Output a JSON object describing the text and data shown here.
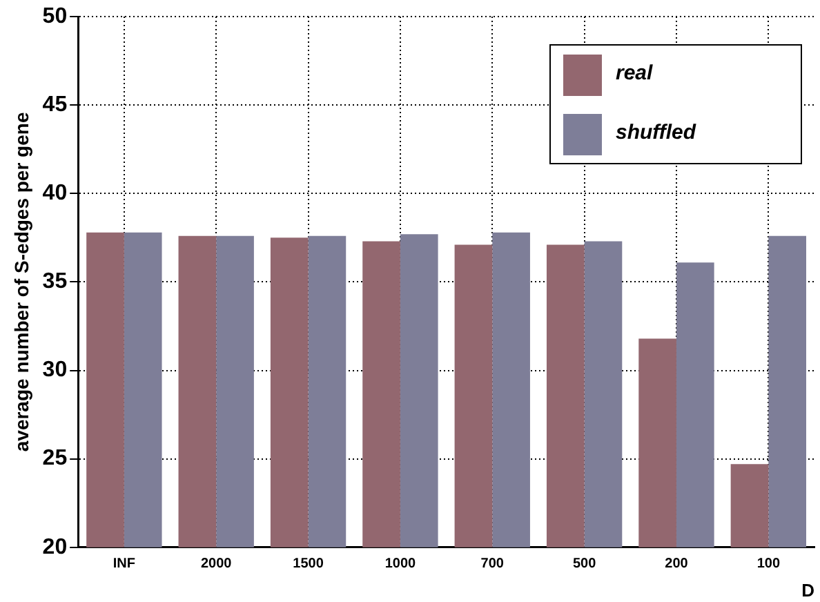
{
  "chart_data": {
    "type": "bar",
    "xlabel": "D",
    "ylabel": "average number of S-edges per gene",
    "categories": [
      "INF",
      "2000",
      "1500",
      "1000",
      "700",
      "500",
      "200",
      "100"
    ],
    "series": [
      {
        "name": "real",
        "color": "#93676f",
        "values": [
          37.8,
          37.6,
          37.5,
          37.3,
          37.1,
          37.1,
          31.8,
          24.7
        ]
      },
      {
        "name": "shuffled",
        "color": "#7e7e98",
        "values": [
          37.8,
          37.6,
          37.6,
          37.7,
          37.8,
          37.3,
          36.1,
          37.6
        ]
      }
    ],
    "ylim": [
      20,
      50
    ],
    "yticks": [
      20,
      25,
      30,
      35,
      40,
      45,
      50
    ],
    "grid": true,
    "legend": "top right"
  }
}
